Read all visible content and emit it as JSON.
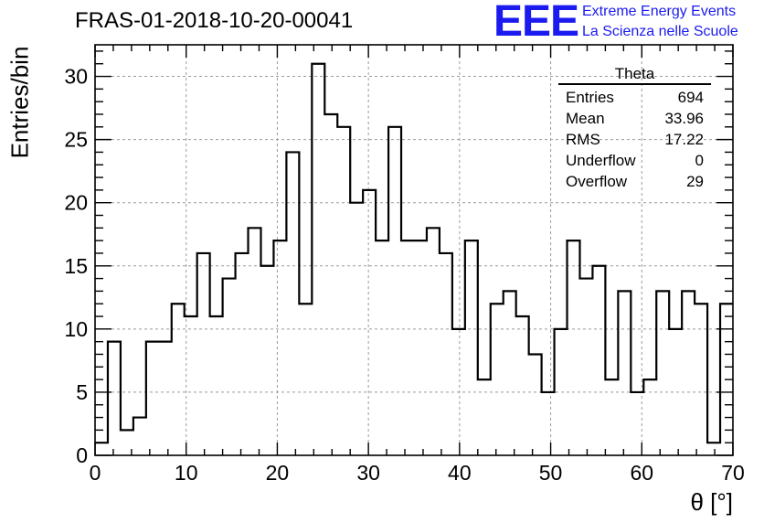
{
  "title": "FRAS-01-2018-10-20-00041",
  "logo": {
    "mark": "EEE",
    "line1": "Extreme Energy Events",
    "line2": "La Scienza nelle Scuole"
  },
  "stats_box": {
    "title": "Theta",
    "rows": [
      {
        "label": "Entries",
        "value": "694"
      },
      {
        "label": "Mean",
        "value": "33.96"
      },
      {
        "label": "RMS",
        "value": "17.22"
      },
      {
        "label": "Underflow",
        "value": "0"
      },
      {
        "label": "Overflow",
        "value": "29"
      }
    ]
  },
  "chart_data": {
    "type": "bar",
    "title": "FRAS-01-2018-10-20-00041",
    "xlabel": "θ [°]",
    "ylabel": "Entries/bin",
    "xlim": [
      0,
      70
    ],
    "ylim": [
      0,
      32.5
    ],
    "x_ticks": [
      0,
      10,
      20,
      30,
      40,
      50,
      60,
      70
    ],
    "y_ticks": [
      0,
      5,
      10,
      15,
      20,
      25,
      30
    ],
    "grid": true,
    "bin_width": 1.4,
    "bin_edges_start": 0,
    "values": [
      1,
      9,
      2,
      3,
      9,
      9,
      12,
      11,
      16,
      11,
      14,
      16,
      18,
      15,
      17,
      24,
      12,
      31,
      27,
      26,
      20,
      21,
      17,
      26,
      17,
      17,
      18,
      16,
      10,
      17,
      6,
      12,
      13,
      11,
      8,
      5,
      10,
      17,
      14,
      15,
      6,
      13,
      5,
      6,
      13,
      10,
      13,
      12,
      1,
      12
    ]
  }
}
